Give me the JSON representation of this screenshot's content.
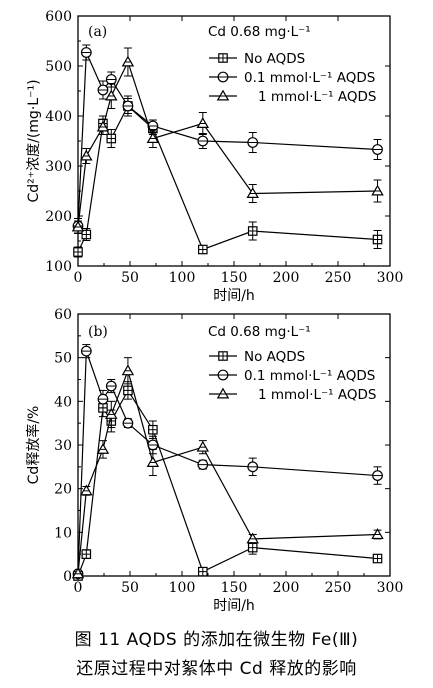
{
  "caption": {
    "line1": "图 11   AQDS 的添加在微生物 Fe(Ⅲ)",
    "line2": "还原过程中对絮体中 Cd 释放的影响"
  },
  "chart_data": [
    {
      "type": "line",
      "panel_label": "(a)",
      "legend_title": "Cd 0.68 mg·L⁻¹",
      "xlabel": "时间/h",
      "ylabel": "Cd²⁺浓度/(mg·L⁻¹)",
      "xlim": [
        0,
        300
      ],
      "ylim": [
        100,
        600
      ],
      "xticks": [
        0,
        50,
        100,
        150,
        200,
        250,
        300
      ],
      "yticks": [
        100,
        200,
        300,
        400,
        500,
        600
      ],
      "series": [
        {
          "name": "No AQDS",
          "marker": "square",
          "x": [
            0,
            8,
            24,
            32,
            48,
            72,
            120,
            168,
            288
          ],
          "y": [
            128,
            163,
            385,
            355,
            420,
            375,
            133,
            170,
            153
          ],
          "err": [
            10,
            12,
            15,
            18,
            15,
            12,
            5,
            18,
            18
          ]
        },
        {
          "name": "0.1 mmol·L⁻¹ AQDS",
          "marker": "circle",
          "x": [
            0,
            8,
            24,
            32,
            48,
            72,
            120,
            168,
            288
          ],
          "y": [
            180,
            527,
            452,
            473,
            420,
            380,
            350,
            347,
            333
          ],
          "err": [
            15,
            15,
            18,
            15,
            20,
            12,
            15,
            20,
            20
          ]
        },
        {
          "name": "1 mmol·L⁻¹ AQDS",
          "marker": "triangle",
          "x": [
            0,
            8,
            24,
            32,
            48,
            72,
            120,
            168,
            288
          ],
          "y": [
            178,
            320,
            378,
            440,
            508,
            355,
            385,
            245,
            250
          ],
          "err": [
            12,
            15,
            15,
            25,
            28,
            18,
            22,
            18,
            22
          ]
        }
      ]
    },
    {
      "type": "line",
      "panel_label": "(b)",
      "legend_title": "Cd 0.68 mg·L⁻¹",
      "xlabel": "时间/h",
      "ylabel": "Cd释放率/%",
      "xlim": [
        0,
        300
      ],
      "ylim": [
        0,
        60
      ],
      "xticks": [
        0,
        50,
        100,
        150,
        200,
        250,
        300
      ],
      "yticks": [
        0,
        10,
        20,
        30,
        40,
        50,
        60
      ],
      "series": [
        {
          "name": "No AQDS",
          "marker": "square",
          "x": [
            0,
            8,
            24,
            32,
            48,
            72,
            120,
            168,
            288
          ],
          "y": [
            0,
            5,
            38.5,
            35.5,
            42.5,
            33.5,
            1,
            6.5,
            4
          ],
          "err": [
            0.5,
            1,
            2,
            2.5,
            2,
            2,
            0.5,
            1.5,
            0.5
          ]
        },
        {
          "name": "0.1 mmol·L⁻¹ AQDS",
          "marker": "circle",
          "x": [
            0,
            8,
            24,
            32,
            48,
            72,
            120,
            168,
            288
          ],
          "y": [
            0.5,
            51.5,
            40.5,
            43.5,
            35,
            30,
            25.5,
            25,
            23
          ],
          "err": [
            0.5,
            1.5,
            2,
            1.5,
            1,
            2,
            1,
            2,
            2
          ]
        },
        {
          "name": "1 mmol·L⁻¹ AQDS",
          "marker": "triangle",
          "x": [
            0,
            8,
            24,
            32,
            48,
            72,
            120,
            168,
            288
          ],
          "y": [
            0.5,
            19.5,
            29,
            37,
            47,
            26,
            29.5,
            8.5,
            9.5
          ],
          "err": [
            0.5,
            1,
            2,
            3,
            3,
            3,
            1.5,
            1,
            1
          ]
        }
      ]
    }
  ]
}
